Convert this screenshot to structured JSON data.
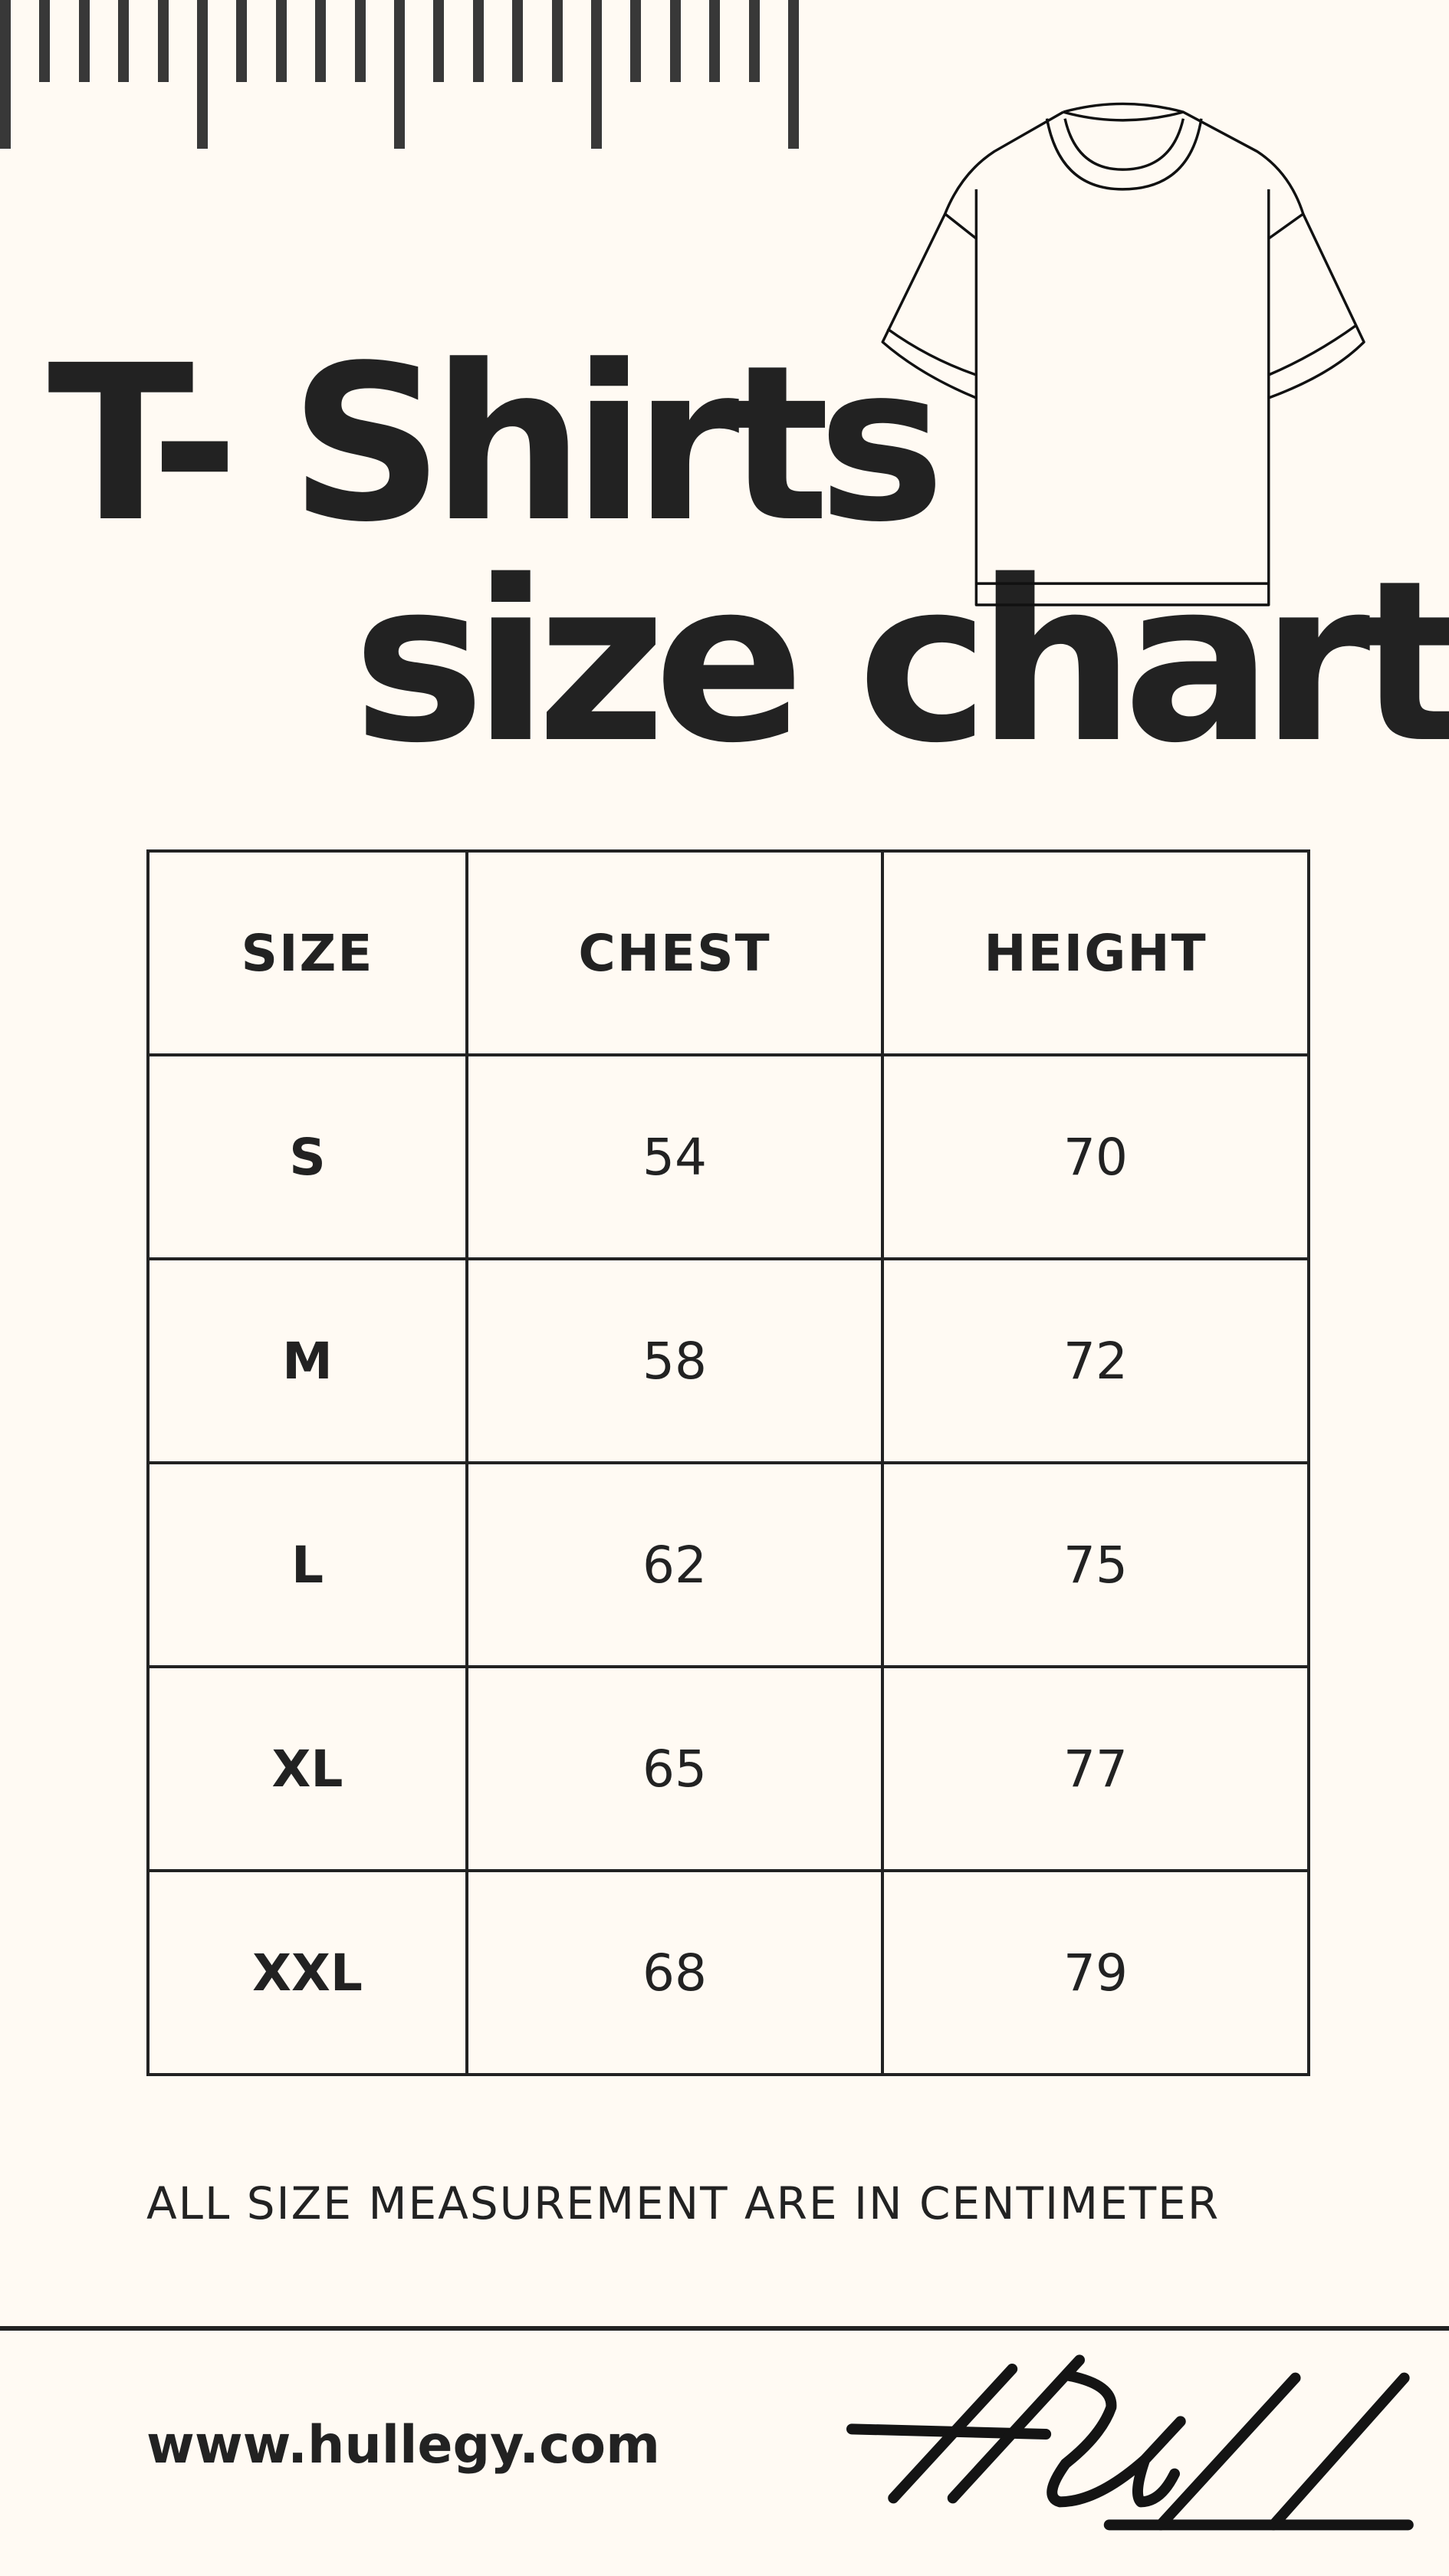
{
  "colors": {
    "background": "#fffaf3",
    "ink": "#222222",
    "ruler": "#383838"
  },
  "title": {
    "line1": "T- Shirts",
    "line2": "size chart"
  },
  "illustration": {
    "icon": "t-shirt-icon"
  },
  "table": {
    "headers": [
      "SIZE",
      "CHEST",
      "HEIGHT"
    ],
    "rows": [
      {
        "size": "S",
        "chest": "54",
        "height": "70"
      },
      {
        "size": "M",
        "chest": "58",
        "height": "72"
      },
      {
        "size": "L",
        "chest": "62",
        "height": "75"
      },
      {
        "size": "XL",
        "chest": "65",
        "height": "77"
      },
      {
        "size": "XXL",
        "chest": "68",
        "height": "79"
      }
    ]
  },
  "note": "ALL SIZE MEASUREMENT ARE IN CENTIMETER",
  "footer": {
    "url": "www.hullegy.com",
    "signature": "HULL"
  }
}
